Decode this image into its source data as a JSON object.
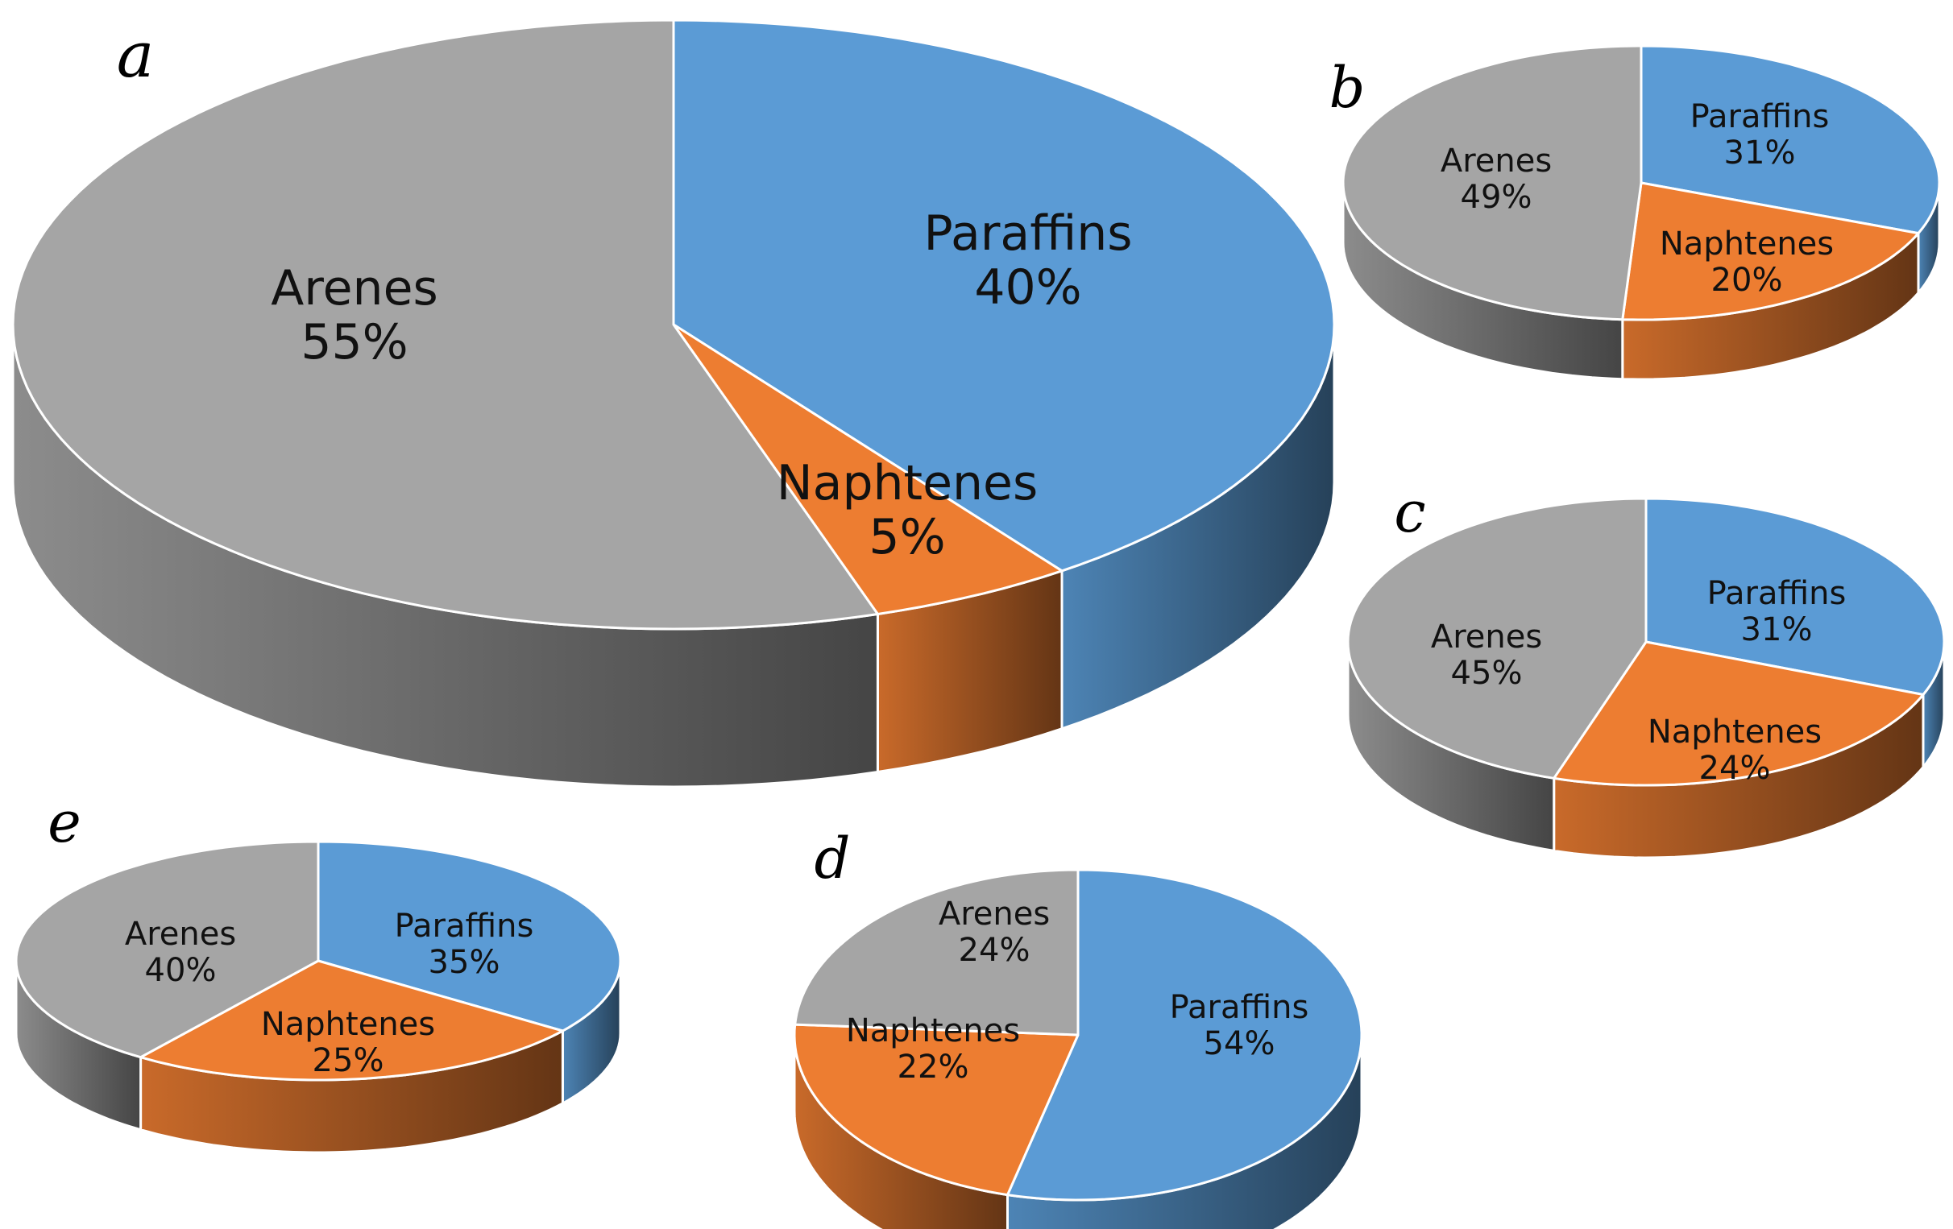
{
  "colors": {
    "Paraffins": "#5b9bd5",
    "Naphtenes": "#ed7d31",
    "Arenes": "#a5a5a5",
    "outline": "#ffffff"
  },
  "chart_data": [
    {
      "type": "pie",
      "panel": "a",
      "categories": [
        "Paraffins",
        "Naphtenes",
        "Arenes"
      ],
      "values": [
        40,
        5,
        55
      ],
      "labels": [
        "40%",
        "5%",
        "55%"
      ]
    },
    {
      "type": "pie",
      "panel": "b",
      "categories": [
        "Paraffins",
        "Naphtenes",
        "Arenes"
      ],
      "values": [
        31,
        20,
        49
      ],
      "labels": [
        "31%",
        "20%",
        "49%"
      ]
    },
    {
      "type": "pie",
      "panel": "c",
      "categories": [
        "Paraffins",
        "Naphtenes",
        "Arenes"
      ],
      "values": [
        31,
        24,
        45
      ],
      "labels": [
        "31%",
        "24%",
        "45%"
      ]
    },
    {
      "type": "pie",
      "panel": "d",
      "categories": [
        "Paraffins",
        "Naphtenes",
        "Arenes"
      ],
      "values": [
        54,
        22,
        24
      ],
      "labels": [
        "54%",
        "22%",
        "24%"
      ]
    },
    {
      "type": "pie",
      "panel": "e",
      "categories": [
        "Paraffins",
        "Naphtenes",
        "Arenes"
      ],
      "values": [
        35,
        25,
        40
      ],
      "labels": [
        "35%",
        "25%",
        "40%"
      ]
    }
  ]
}
